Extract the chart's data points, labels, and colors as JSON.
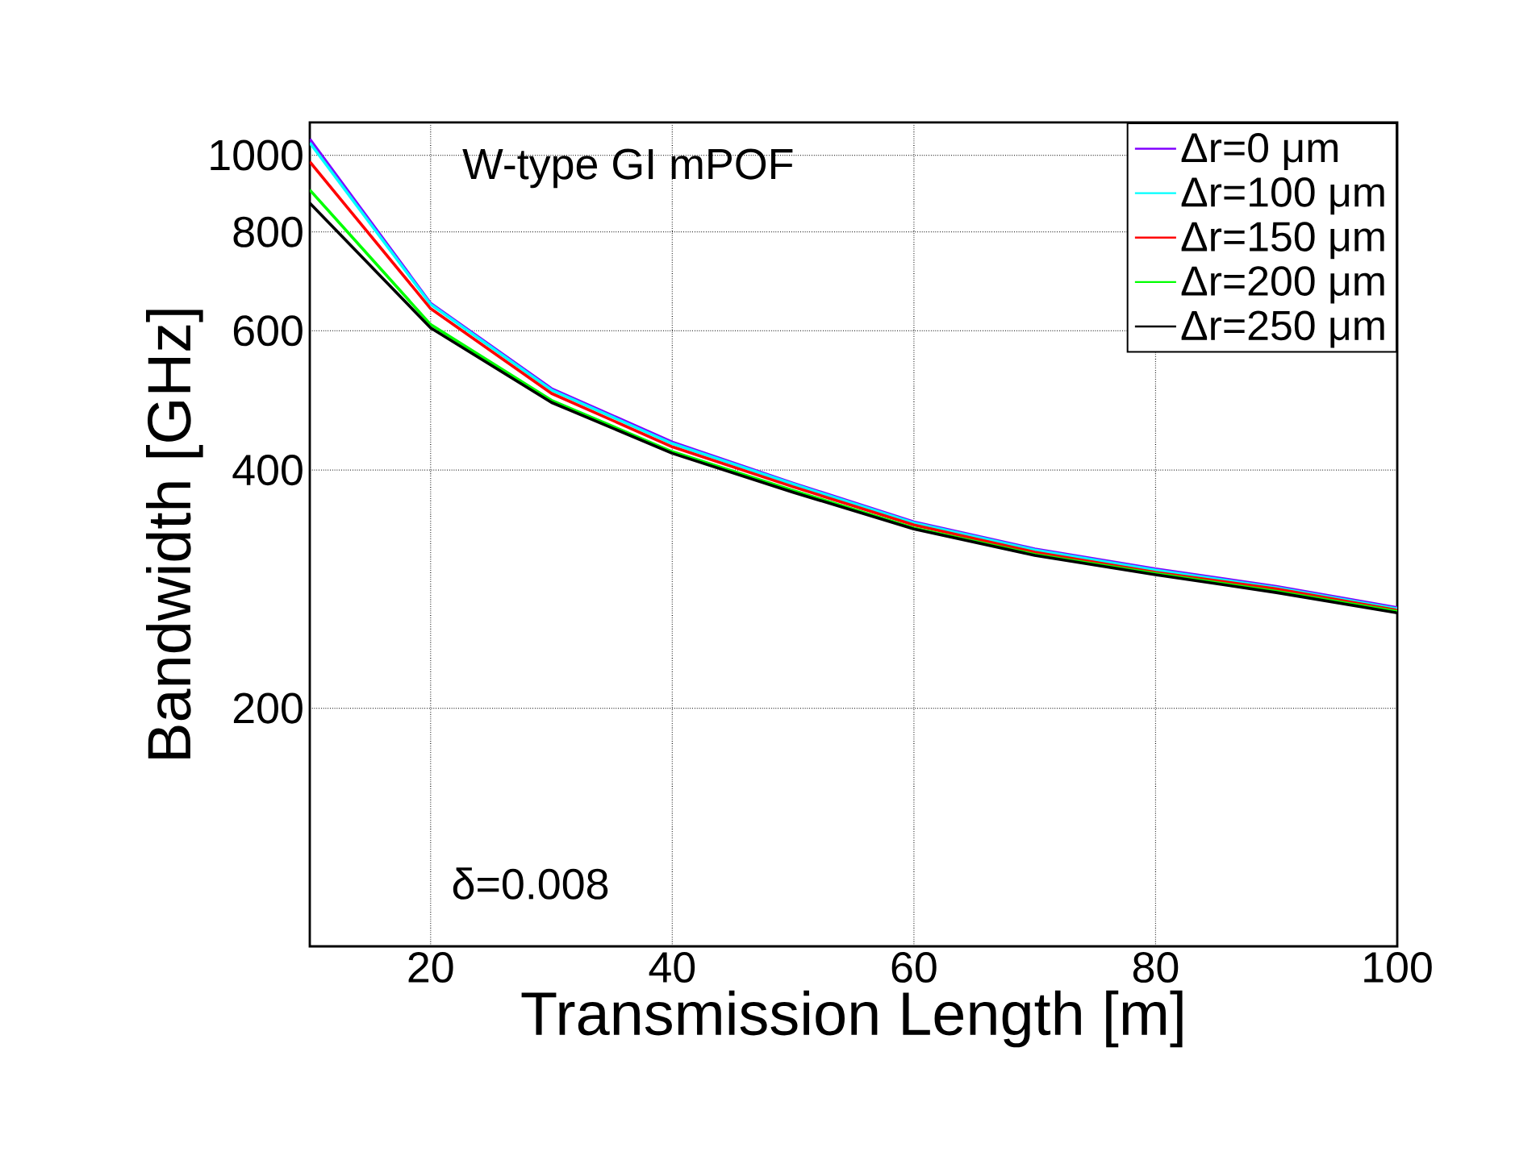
{
  "chart_data": {
    "type": "line",
    "xlabel": "Transmission Length [m]",
    "ylabel": "Bandwidth [GHz]",
    "x": [
      10,
      20,
      30,
      40,
      50,
      60,
      70,
      80,
      90,
      100
    ],
    "series": [
      {
        "name": "Δr=0 μm",
        "color": "#8000ff",
        "values": [
          1048,
          650,
          507,
          434,
          385,
          344,
          318,
          300,
          285,
          268
        ]
      },
      {
        "name": "Δr=100 μm",
        "color": "#00ffff",
        "values": [
          1037,
          648,
          505,
          432,
          384,
          343,
          317,
          299,
          284,
          267
        ]
      },
      {
        "name": "Δr=150 μm",
        "color": "#ff0000",
        "values": [
          981,
          640,
          500,
          428,
          381,
          341,
          315,
          297,
          283,
          266
        ]
      },
      {
        "name": "Δr=200 μm",
        "color": "#00ff00",
        "values": [
          904,
          611,
          490,
          422,
          377,
          338,
          313,
          296,
          281,
          265
        ]
      },
      {
        "name": "Δr=250 μm",
        "color": "#000000",
        "values": [
          870,
          605,
          487,
          420,
          375,
          337,
          312,
          295,
          280,
          264
        ]
      }
    ],
    "xlim": [
      10,
      100
    ],
    "xticks": [
      20,
      40,
      60,
      80,
      100
    ],
    "ylim": [
      100,
      1100
    ],
    "yticks": [
      200,
      400,
      600,
      800,
      1000
    ],
    "log": "y",
    "grid": true,
    "legend": "top right",
    "marker": "none",
    "line_style": "solid",
    "annotations": [
      "W-type GI mPOF",
      "δ=0.008"
    ]
  }
}
